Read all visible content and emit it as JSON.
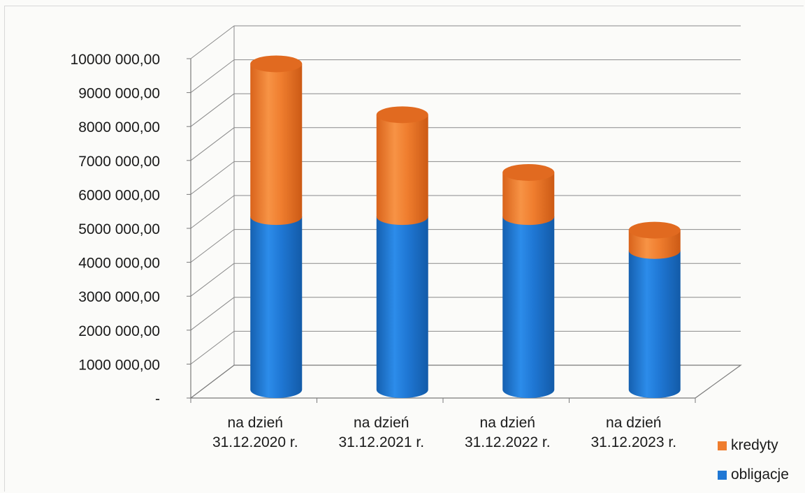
{
  "chart_data": {
    "type": "bar",
    "stacked": true,
    "style": "3d-cylinder",
    "title": "",
    "xlabel": "",
    "ylabel": "",
    "ylim": [
      0,
      10000000
    ],
    "ytick_labels": [
      "-",
      "1000 000,00",
      "2000 000,00",
      "3000 000,00",
      "4000 000,00",
      "5000 000,00",
      "6000 000,00",
      "7000 000,00",
      "8000 000,00",
      "9000 000,00",
      "10000 000,00"
    ],
    "categories": [
      [
        "na dzień",
        "31.12.2020 r."
      ],
      [
        "na dzień",
        "31.12.2021 r."
      ],
      [
        "na dzień",
        "31.12.2022 r."
      ],
      [
        "na dzień",
        "31.12.2023 r."
      ]
    ],
    "series": [
      {
        "name": "obligacje",
        "color": "#1f77d4",
        "values": [
          5100000,
          5100000,
          5100000,
          4100000
        ]
      },
      {
        "name": "kredyty",
        "color": "#ef7d2e",
        "values": [
          4500000,
          3000000,
          1300000,
          600000
        ]
      }
    ],
    "grid": true,
    "legend_position": "bottom-right"
  }
}
